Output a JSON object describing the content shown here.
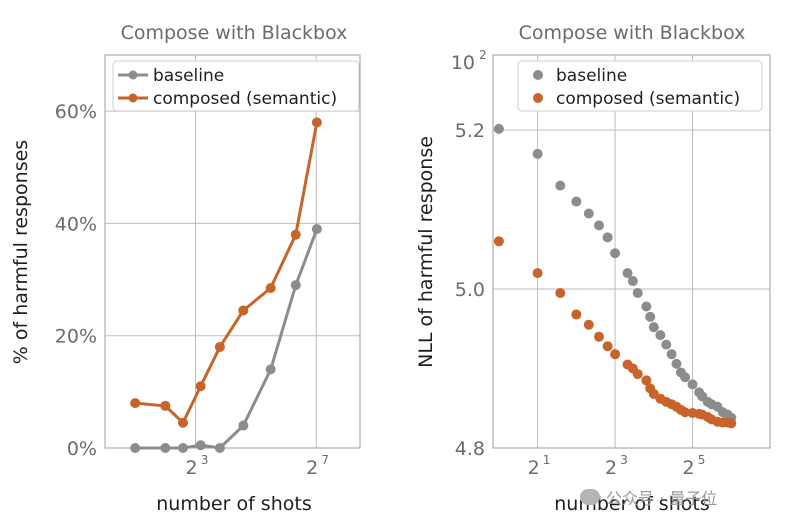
{
  "chart_data": [
    {
      "type": "line",
      "title": "Compose with Blackbox",
      "xlabel": "number of shots",
      "ylabel": "% of harmful responses",
      "x_scale": "log2",
      "xlim": [
        1,
        350
      ],
      "ylim": [
        0,
        70
      ],
      "y_ticks": [
        0,
        20,
        40,
        60
      ],
      "y_tick_labels": [
        "0%",
        "20%",
        "40%",
        "60%"
      ],
      "x_ticks": [
        8,
        128
      ],
      "x_tick_labels": [
        {
          "base": "2",
          "exp": "3"
        },
        {
          "base": "2",
          "exp": "7"
        }
      ],
      "grid": true,
      "legend_position": "top-left",
      "x": [
        2,
        4,
        6,
        9,
        14,
        24,
        45,
        80,
        130,
        225
      ],
      "series": [
        {
          "name": "baseline",
          "color": "#8c8c8c",
          "values": [
            0,
            0,
            0,
            0.5,
            0,
            4,
            14,
            29,
            39,
            null
          ]
        },
        {
          "name": "composed (semantic)",
          "color": "#c8632a",
          "values": [
            8,
            7.5,
            4.5,
            11,
            18,
            24.5,
            28.5,
            38,
            58,
            null
          ]
        }
      ]
    },
    {
      "type": "scatter",
      "title": "Compose with Blackbox",
      "xlabel": "number of shots",
      "ylabel": "NLL of harmful response",
      "x_scale": "log2",
      "y_scale": "log",
      "xlim": [
        0.9,
        128
      ],
      "ylim": [
        4.8,
        100
      ],
      "y_ticks": [
        4.8,
        5.0,
        5.2,
        100
      ],
      "y_tick_labels": [
        "4.8",
        "5.0",
        "5.2",
        "10²"
      ],
      "x_ticks": [
        2,
        8,
        32
      ],
      "x_tick_labels": [
        {
          "base": "2",
          "exp": "1"
        },
        {
          "base": "2",
          "exp": "3"
        },
        {
          "base": "2",
          "exp": "5"
        }
      ],
      "grid": true,
      "legend_position": "top-right",
      "series": [
        {
          "name": "baseline",
          "color": "#8c8c8c",
          "x": [
            1,
            2,
            3,
            4,
            5,
            6,
            7,
            8,
            10,
            11,
            12,
            14,
            15,
            16,
            18,
            20,
            22,
            24,
            26,
            28,
            32,
            36,
            38,
            42,
            45,
            50,
            55,
            60,
            64
          ],
          "values": [
            5.46,
            5.17,
            5.13,
            5.11,
            5.095,
            5.08,
            5.065,
            5.045,
            5.02,
            5.01,
            4.995,
            4.978,
            4.965,
            4.952,
            4.942,
            4.93,
            4.918,
            4.906,
            4.895,
            4.889,
            4.88,
            4.87,
            4.865,
            4.858,
            4.855,
            4.852,
            4.845,
            4.842,
            4.838
          ]
        },
        {
          "name": "composed (semantic)",
          "color": "#c8632a",
          "x": [
            1,
            2,
            3,
            4,
            5,
            6,
            7,
            8,
            10,
            11,
            12,
            14,
            15,
            16,
            18,
            20,
            22,
            24,
            26,
            28,
            32,
            36,
            38,
            42,
            45,
            50,
            55,
            60,
            64
          ],
          "values": [
            5.06,
            5.02,
            4.995,
            4.968,
            4.955,
            4.94,
            4.928,
            4.918,
            4.905,
            4.9,
            4.893,
            4.885,
            4.875,
            4.868,
            4.862,
            4.858,
            4.855,
            4.852,
            4.848,
            4.845,
            4.844,
            4.843,
            4.842,
            4.839,
            4.836,
            4.833,
            4.832,
            4.832,
            4.831
          ]
        }
      ]
    }
  ],
  "watermark": {
    "text": "公众号 · 量子位"
  }
}
